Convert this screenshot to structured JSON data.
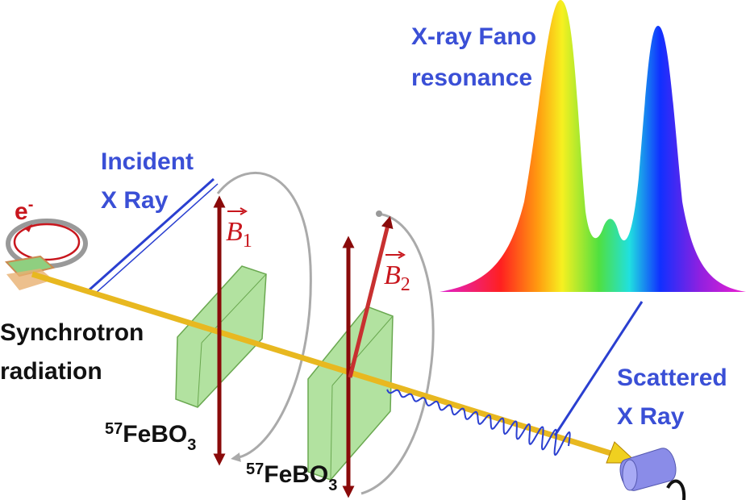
{
  "spectrum_label": {
    "lines": [
      "X-ray Fano",
      "resonance"
    ]
  },
  "incident_label": {
    "lines": [
      "Incident",
      "X Ray"
    ]
  },
  "electron_label": {
    "symbol": "e",
    "charge": "-"
  },
  "source_label": {
    "lines": [
      "Synchrotron",
      "radiation"
    ]
  },
  "samples": [
    {
      "mass": "57",
      "formula": "FeBO",
      "subscript": "3"
    },
    {
      "mass": "57",
      "formula": "FeBO",
      "subscript": "3"
    }
  ],
  "fields": [
    {
      "symbol": "B",
      "subscript": "1"
    },
    {
      "symbol": "B",
      "subscript": "2"
    }
  ],
  "scattered_label": {
    "lines": [
      "Scattered",
      "X Ray"
    ]
  }
}
